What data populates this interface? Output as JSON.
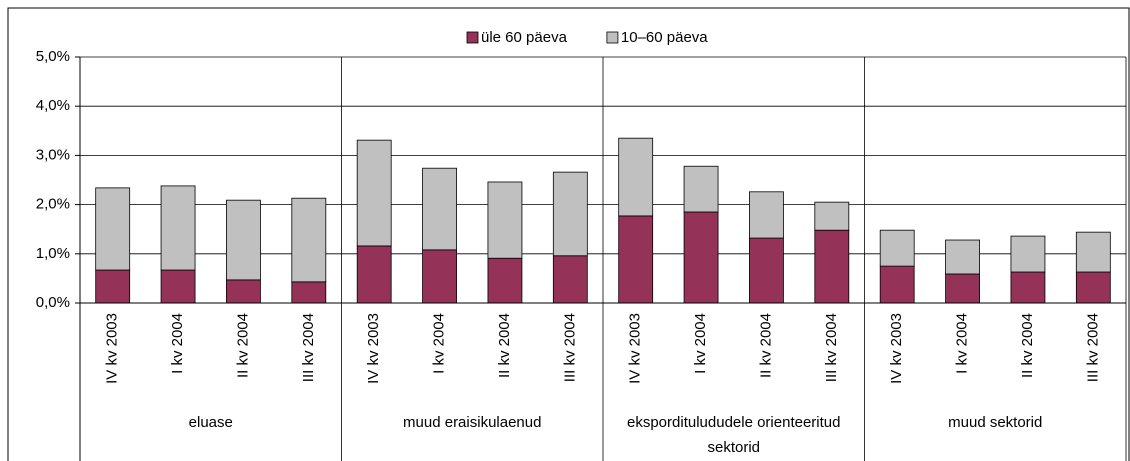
{
  "chart_data": {
    "type": "stacked_bar",
    "groups": [
      {
        "name": "eluase",
        "categories": [
          "IV kv 2003",
          "I kv 2004",
          "II kv 2004",
          "III kv 2004"
        ]
      },
      {
        "name": "muud eraisikulaenud",
        "categories": [
          "IV kv 2003",
          "I kv 2004",
          "II kv 2004",
          "III kv 2004"
        ]
      },
      {
        "name": "eksporditulududele orienteeritud sektorid",
        "categories": [
          "IV kv 2003",
          "I kv 2004",
          "II kv 2004",
          "III kv 2004"
        ]
      },
      {
        "name": "muud sektorid",
        "categories": [
          "IV kv 2003",
          "I kv 2004",
          "II kv 2004",
          "III kv 2004"
        ]
      }
    ],
    "series": [
      {
        "name": "üle 60 päeva",
        "color": "#943258",
        "values": [
          0.67,
          0.67,
          0.47,
          0.43,
          1.16,
          1.08,
          0.91,
          0.96,
          1.77,
          1.85,
          1.32,
          1.48,
          0.75,
          0.59,
          0.63,
          0.63
        ]
      },
      {
        "name": "10–60 päeva",
        "color": "#c0c0c0",
        "values": [
          1.67,
          1.71,
          1.62,
          1.7,
          2.15,
          1.66,
          1.55,
          1.7,
          1.58,
          0.93,
          0.94,
          0.57,
          0.73,
          0.69,
          0.73,
          0.81
        ]
      }
    ],
    "ylim": [
      0,
      5
    ],
    "yticks": [
      {
        "value": 0,
        "label": "0,0%"
      },
      {
        "value": 1,
        "label": "1,0%"
      },
      {
        "value": 2,
        "label": "2,0%"
      },
      {
        "value": 3,
        "label": "3,0%"
      },
      {
        "value": 4,
        "label": "4,0%"
      },
      {
        "value": 5,
        "label": "5,0%"
      }
    ],
    "grid": true
  }
}
